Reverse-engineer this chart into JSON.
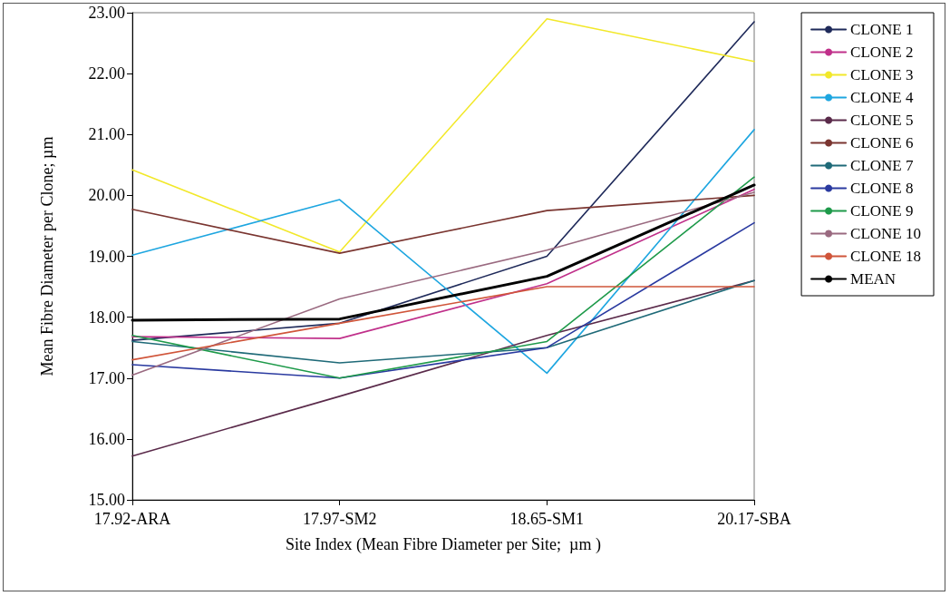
{
  "chart_data": {
    "type": "line",
    "xlabel": "Site Index (Mean Fibre Diameter per Site;  µm )",
    "ylabel": "Mean Fibre Diameter per Clone; µm",
    "categories": [
      "17.92-ARA",
      "17.97-SM2",
      "18.65-SM1",
      "20.17-SBA"
    ],
    "series": [
      {
        "name": "CLONE 1",
        "color": "#1f2a5a",
        "values": [
          17.62,
          17.9,
          19.0,
          22.85
        ]
      },
      {
        "name": "CLONE 2",
        "color": "#c0308a",
        "values": [
          17.68,
          17.65,
          18.55,
          20.1
        ]
      },
      {
        "name": "CLONE 3",
        "color": "#f2e82a",
        "values": [
          20.42,
          19.07,
          22.9,
          22.2
        ]
      },
      {
        "name": "CLONE 4",
        "color": "#1ea6e0",
        "values": [
          19.02,
          19.93,
          17.08,
          21.08
        ]
      },
      {
        "name": "CLONE 5",
        "color": "#5a2a4a",
        "values": [
          15.72,
          16.7,
          17.7,
          18.6
        ]
      },
      {
        "name": "CLONE 6",
        "color": "#7a3530",
        "values": [
          19.77,
          19.05,
          19.75,
          20.0
        ]
      },
      {
        "name": "CLONE 7",
        "color": "#1f6a78",
        "values": [
          17.6,
          17.25,
          17.5,
          18.6
        ]
      },
      {
        "name": "CLONE 8",
        "color": "#2a3aa0",
        "values": [
          17.22,
          17.0,
          17.5,
          19.55
        ]
      },
      {
        "name": "CLONE 9",
        "color": "#1e9a4a",
        "values": [
          17.7,
          17.0,
          17.6,
          20.3
        ]
      },
      {
        "name": "CLONE 10",
        "color": "#9a6a80",
        "values": [
          17.05,
          18.3,
          19.1,
          20.05
        ]
      },
      {
        "name": "CLONE 18",
        "color": "#d0553a",
        "values": [
          17.3,
          17.9,
          18.5,
          18.5
        ]
      },
      {
        "name": "MEAN",
        "color": "#000000",
        "values": [
          17.95,
          17.97,
          18.67,
          20.17
        ]
      }
    ],
    "ylim": [
      15,
      23
    ],
    "yticks": [
      {
        "value": 15,
        "label": "15.00"
      },
      {
        "value": 16,
        "label": "16.00"
      },
      {
        "value": 17,
        "label": "17.00"
      },
      {
        "value": 18,
        "label": "18.00"
      },
      {
        "value": 19,
        "label": "19.00"
      },
      {
        "value": 20,
        "label": "20.00"
      },
      {
        "value": 21,
        "label": "21.00"
      },
      {
        "value": 22,
        "label": "22.00"
      },
      {
        "value": 23,
        "label": "23.00"
      }
    ],
    "grid": false,
    "legend": "right",
    "marker": "none",
    "line_style": "solid"
  }
}
